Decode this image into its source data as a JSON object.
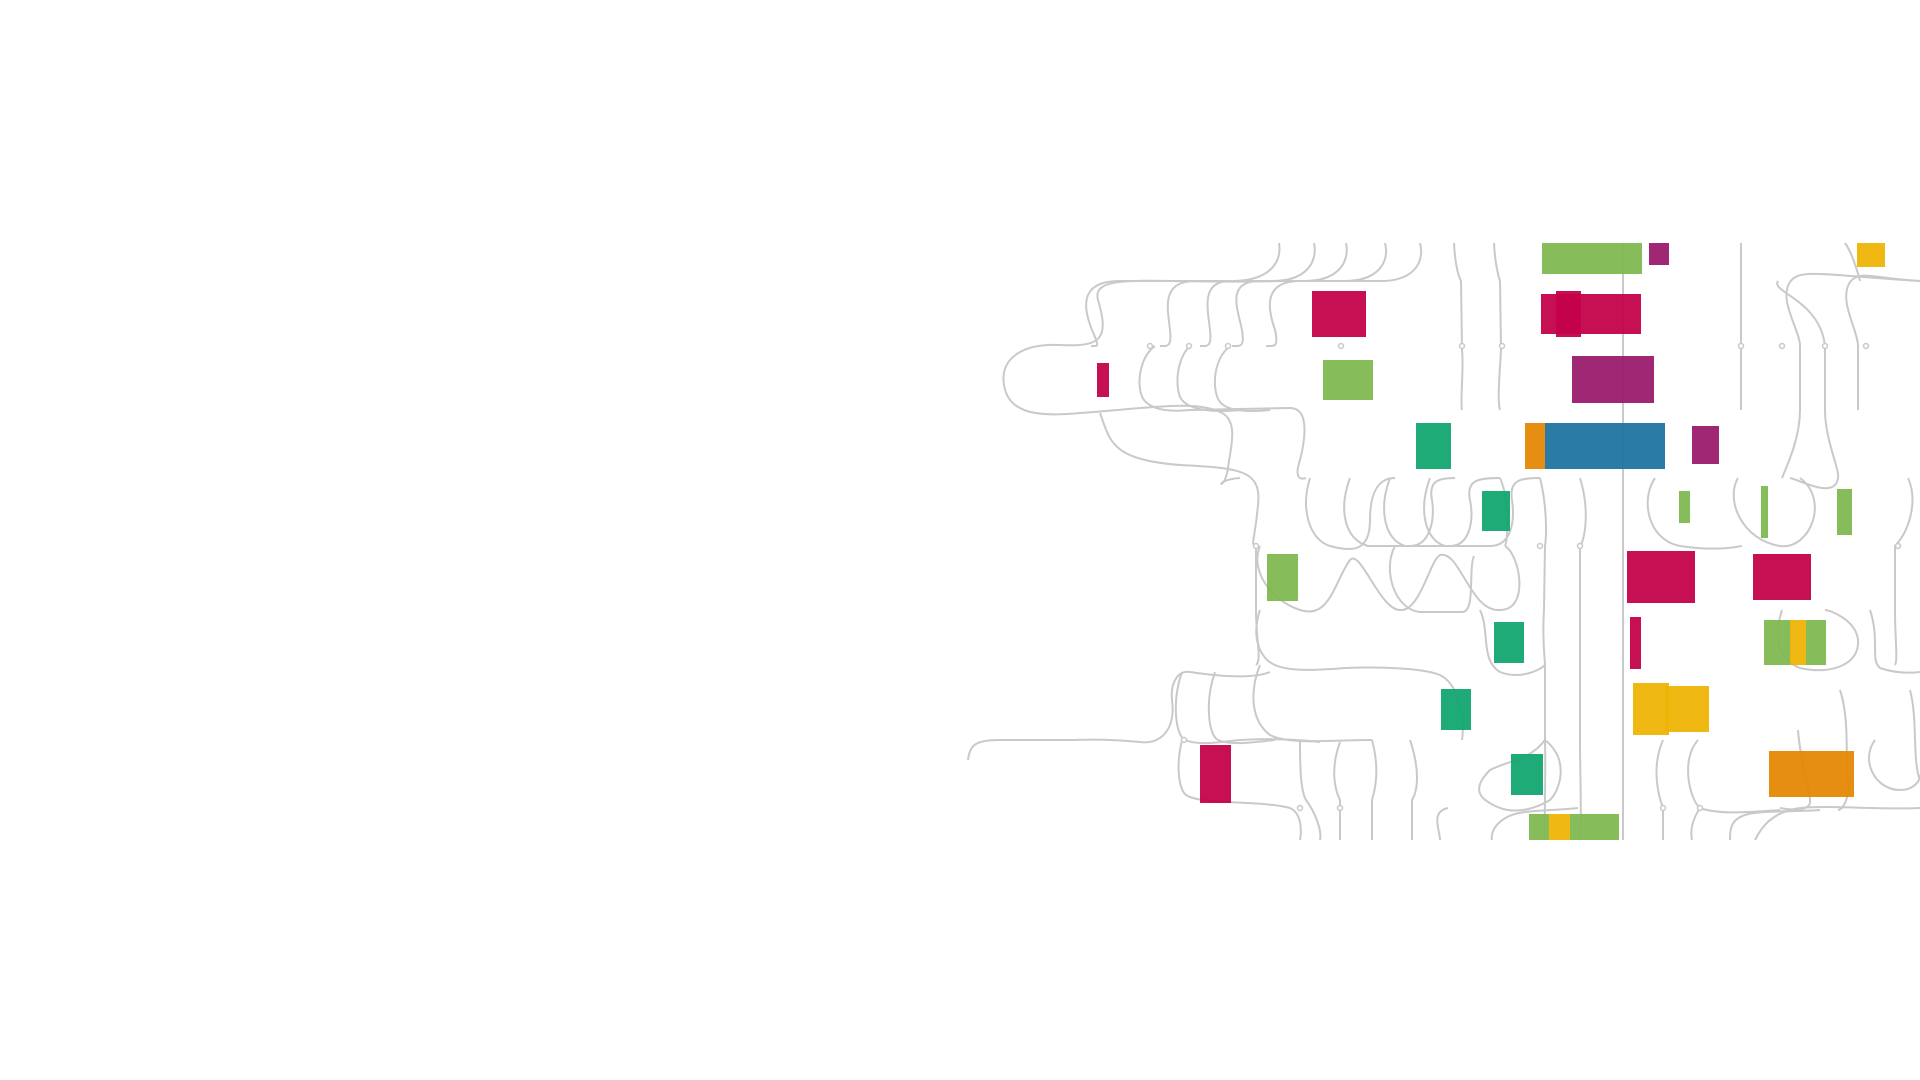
{
  "palette": {
    "background": "#ffffff",
    "wire": "#c9c9c9",
    "green": "#7fb851",
    "magenta": "#c4024b",
    "purple": "#9a1b6c",
    "teal": "#12a770",
    "blue": "#1f75a1",
    "orange": "#e48805",
    "yellow": "#eeb405"
  },
  "blocks": [
    {
      "color": "green"
    },
    {
      "color": "purple"
    },
    {
      "color": "yellow"
    },
    {
      "color": "magenta"
    },
    {
      "color": "magenta"
    },
    {
      "color": "magenta"
    },
    {
      "color": "magenta"
    },
    {
      "color": "green"
    },
    {
      "color": "purple"
    },
    {
      "color": "teal"
    },
    {
      "color": "orange"
    },
    {
      "color": "blue"
    },
    {
      "color": "purple"
    },
    {
      "color": "teal"
    },
    {
      "color": "green"
    },
    {
      "color": "green"
    },
    {
      "color": "green"
    },
    {
      "color": "green"
    },
    {
      "color": "magenta"
    },
    {
      "color": "magenta"
    },
    {
      "color": "teal"
    },
    {
      "color": "magenta"
    },
    {
      "color": "green"
    },
    {
      "color": "yellow"
    },
    {
      "color": "green"
    },
    {
      "color": "teal"
    },
    {
      "color": "yellow"
    },
    {
      "color": "yellow"
    },
    {
      "color": "magenta"
    },
    {
      "color": "teal"
    },
    {
      "color": "orange"
    },
    {
      "color": "green"
    },
    {
      "color": "yellow"
    },
    {
      "color": "green"
    }
  ]
}
